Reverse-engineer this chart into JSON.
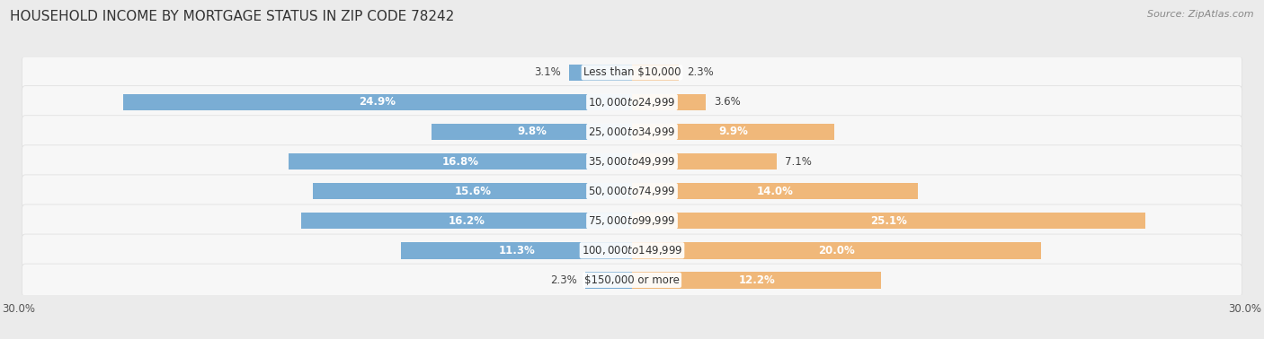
{
  "title": "HOUSEHOLD INCOME BY MORTGAGE STATUS IN ZIP CODE 78242",
  "source": "Source: ZipAtlas.com",
  "categories": [
    "Less than $10,000",
    "$10,000 to $24,999",
    "$25,000 to $34,999",
    "$35,000 to $49,999",
    "$50,000 to $74,999",
    "$75,000 to $99,999",
    "$100,000 to $149,999",
    "$150,000 or more"
  ],
  "without_mortgage": [
    3.1,
    24.9,
    9.8,
    16.8,
    15.6,
    16.2,
    11.3,
    2.3
  ],
  "with_mortgage": [
    2.3,
    3.6,
    9.9,
    7.1,
    14.0,
    25.1,
    20.0,
    12.2
  ],
  "without_mortgage_color": "#7aadd4",
  "with_mortgage_color": "#f0b87a",
  "background_color": "#ebebeb",
  "row_bg_color": "#f7f7f7",
  "row_border_color": "#dddddd",
  "axis_max": 30.0,
  "title_fontsize": 11,
  "label_fontsize": 8.5,
  "axis_label_fontsize": 8.5,
  "source_fontsize": 8
}
